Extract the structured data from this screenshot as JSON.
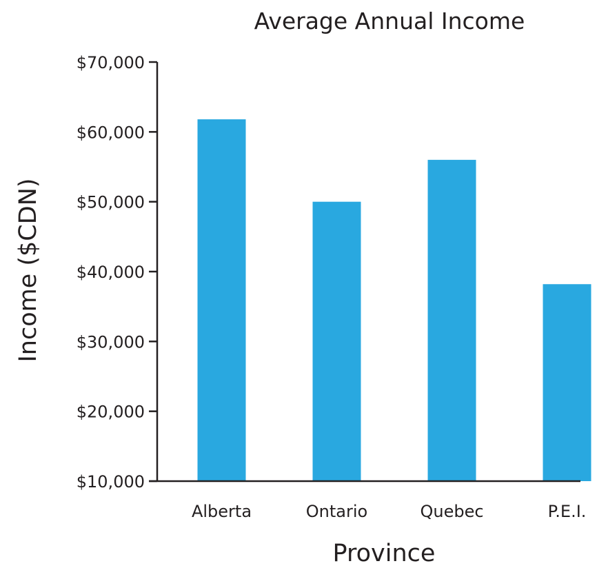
{
  "chart_data": {
    "type": "bar",
    "title": "Average Annual Income",
    "xlabel": "Province",
    "ylabel": "Income ($CDN)",
    "categories": [
      "Alberta",
      "Ontario",
      "Quebec",
      "P.E.I."
    ],
    "values": [
      61800,
      50000,
      56000,
      38200
    ],
    "ylim": [
      10000,
      70000
    ],
    "yticks": [
      10000,
      20000,
      30000,
      40000,
      50000,
      60000,
      70000
    ],
    "ytick_labels": [
      "$10,000",
      "$20,000",
      "$30,000",
      "$40,000",
      "$50,000",
      "$60,000",
      "$70,000"
    ],
    "bar_color": "#29a8e0",
    "axis_color": "#231f20",
    "grid": false,
    "legend": "none"
  }
}
